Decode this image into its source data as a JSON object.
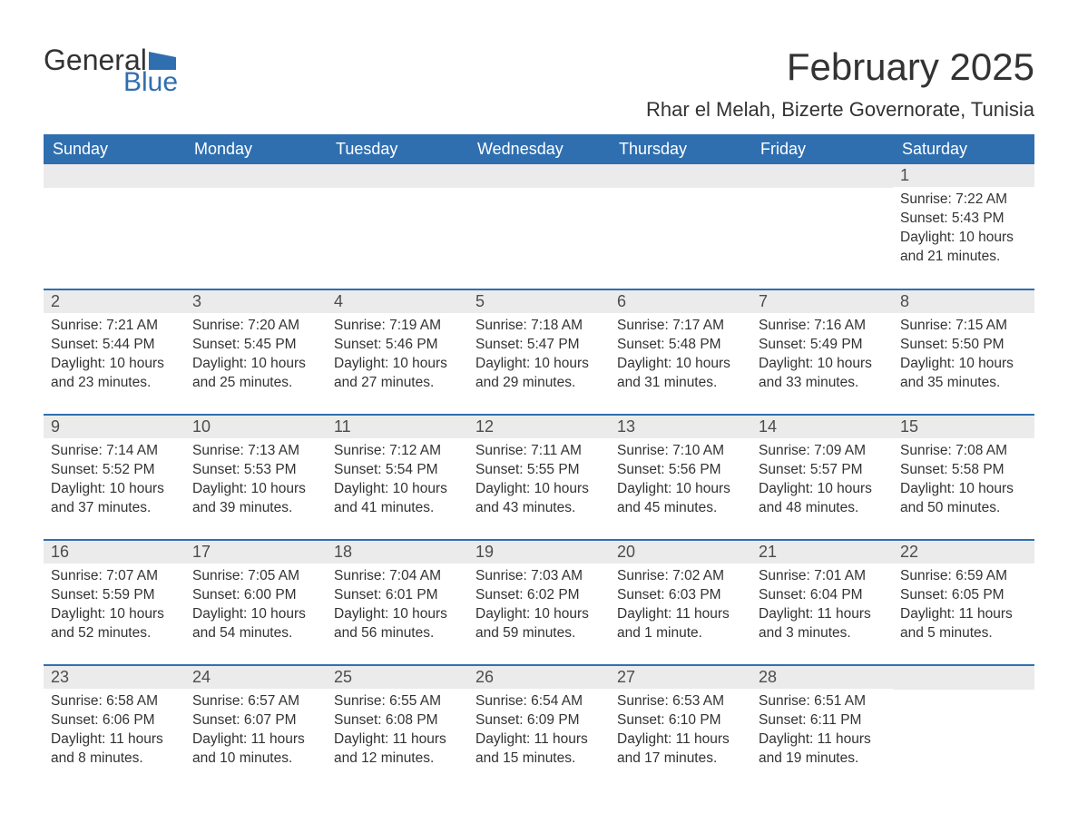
{
  "logo": {
    "text_primary": "General",
    "text_secondary": "Blue",
    "flag_color": "#2f6fb0"
  },
  "title": "February 2025",
  "location": "Rhar el Melah, Bizerte Governorate, Tunisia",
  "colors": {
    "header_bg": "#2f6fb0",
    "header_text": "#ffffff",
    "daynum_bg": "#ebebeb",
    "body_text": "#333333",
    "row_border": "#2f6fb0"
  },
  "typography": {
    "title_fontsize": 42,
    "location_fontsize": 22,
    "weekday_fontsize": 18,
    "daynum_fontsize": 18,
    "body_fontsize": 15.5,
    "font_family": "Segoe UI"
  },
  "weekdays": [
    "Sunday",
    "Monday",
    "Tuesday",
    "Wednesday",
    "Thursday",
    "Friday",
    "Saturday"
  ],
  "weeks": [
    [
      {
        "day": "",
        "sunrise": "",
        "sunset": "",
        "daylight": ""
      },
      {
        "day": "",
        "sunrise": "",
        "sunset": "",
        "daylight": ""
      },
      {
        "day": "",
        "sunrise": "",
        "sunset": "",
        "daylight": ""
      },
      {
        "day": "",
        "sunrise": "",
        "sunset": "",
        "daylight": ""
      },
      {
        "day": "",
        "sunrise": "",
        "sunset": "",
        "daylight": ""
      },
      {
        "day": "",
        "sunrise": "",
        "sunset": "",
        "daylight": ""
      },
      {
        "day": "1",
        "sunrise": "Sunrise: 7:22 AM",
        "sunset": "Sunset: 5:43 PM",
        "daylight": "Daylight: 10 hours and 21 minutes."
      }
    ],
    [
      {
        "day": "2",
        "sunrise": "Sunrise: 7:21 AM",
        "sunset": "Sunset: 5:44 PM",
        "daylight": "Daylight: 10 hours and 23 minutes."
      },
      {
        "day": "3",
        "sunrise": "Sunrise: 7:20 AM",
        "sunset": "Sunset: 5:45 PM",
        "daylight": "Daylight: 10 hours and 25 minutes."
      },
      {
        "day": "4",
        "sunrise": "Sunrise: 7:19 AM",
        "sunset": "Sunset: 5:46 PM",
        "daylight": "Daylight: 10 hours and 27 minutes."
      },
      {
        "day": "5",
        "sunrise": "Sunrise: 7:18 AM",
        "sunset": "Sunset: 5:47 PM",
        "daylight": "Daylight: 10 hours and 29 minutes."
      },
      {
        "day": "6",
        "sunrise": "Sunrise: 7:17 AM",
        "sunset": "Sunset: 5:48 PM",
        "daylight": "Daylight: 10 hours and 31 minutes."
      },
      {
        "day": "7",
        "sunrise": "Sunrise: 7:16 AM",
        "sunset": "Sunset: 5:49 PM",
        "daylight": "Daylight: 10 hours and 33 minutes."
      },
      {
        "day": "8",
        "sunrise": "Sunrise: 7:15 AM",
        "sunset": "Sunset: 5:50 PM",
        "daylight": "Daylight: 10 hours and 35 minutes."
      }
    ],
    [
      {
        "day": "9",
        "sunrise": "Sunrise: 7:14 AM",
        "sunset": "Sunset: 5:52 PM",
        "daylight": "Daylight: 10 hours and 37 minutes."
      },
      {
        "day": "10",
        "sunrise": "Sunrise: 7:13 AM",
        "sunset": "Sunset: 5:53 PM",
        "daylight": "Daylight: 10 hours and 39 minutes."
      },
      {
        "day": "11",
        "sunrise": "Sunrise: 7:12 AM",
        "sunset": "Sunset: 5:54 PM",
        "daylight": "Daylight: 10 hours and 41 minutes."
      },
      {
        "day": "12",
        "sunrise": "Sunrise: 7:11 AM",
        "sunset": "Sunset: 5:55 PM",
        "daylight": "Daylight: 10 hours and 43 minutes."
      },
      {
        "day": "13",
        "sunrise": "Sunrise: 7:10 AM",
        "sunset": "Sunset: 5:56 PM",
        "daylight": "Daylight: 10 hours and 45 minutes."
      },
      {
        "day": "14",
        "sunrise": "Sunrise: 7:09 AM",
        "sunset": "Sunset: 5:57 PM",
        "daylight": "Daylight: 10 hours and 48 minutes."
      },
      {
        "day": "15",
        "sunrise": "Sunrise: 7:08 AM",
        "sunset": "Sunset: 5:58 PM",
        "daylight": "Daylight: 10 hours and 50 minutes."
      }
    ],
    [
      {
        "day": "16",
        "sunrise": "Sunrise: 7:07 AM",
        "sunset": "Sunset: 5:59 PM",
        "daylight": "Daylight: 10 hours and 52 minutes."
      },
      {
        "day": "17",
        "sunrise": "Sunrise: 7:05 AM",
        "sunset": "Sunset: 6:00 PM",
        "daylight": "Daylight: 10 hours and 54 minutes."
      },
      {
        "day": "18",
        "sunrise": "Sunrise: 7:04 AM",
        "sunset": "Sunset: 6:01 PM",
        "daylight": "Daylight: 10 hours and 56 minutes."
      },
      {
        "day": "19",
        "sunrise": "Sunrise: 7:03 AM",
        "sunset": "Sunset: 6:02 PM",
        "daylight": "Daylight: 10 hours and 59 minutes."
      },
      {
        "day": "20",
        "sunrise": "Sunrise: 7:02 AM",
        "sunset": "Sunset: 6:03 PM",
        "daylight": "Daylight: 11 hours and 1 minute."
      },
      {
        "day": "21",
        "sunrise": "Sunrise: 7:01 AM",
        "sunset": "Sunset: 6:04 PM",
        "daylight": "Daylight: 11 hours and 3 minutes."
      },
      {
        "day": "22",
        "sunrise": "Sunrise: 6:59 AM",
        "sunset": "Sunset: 6:05 PM",
        "daylight": "Daylight: 11 hours and 5 minutes."
      }
    ],
    [
      {
        "day": "23",
        "sunrise": "Sunrise: 6:58 AM",
        "sunset": "Sunset: 6:06 PM",
        "daylight": "Daylight: 11 hours and 8 minutes."
      },
      {
        "day": "24",
        "sunrise": "Sunrise: 6:57 AM",
        "sunset": "Sunset: 6:07 PM",
        "daylight": "Daylight: 11 hours and 10 minutes."
      },
      {
        "day": "25",
        "sunrise": "Sunrise: 6:55 AM",
        "sunset": "Sunset: 6:08 PM",
        "daylight": "Daylight: 11 hours and 12 minutes."
      },
      {
        "day": "26",
        "sunrise": "Sunrise: 6:54 AM",
        "sunset": "Sunset: 6:09 PM",
        "daylight": "Daylight: 11 hours and 15 minutes."
      },
      {
        "day": "27",
        "sunrise": "Sunrise: 6:53 AM",
        "sunset": "Sunset: 6:10 PM",
        "daylight": "Daylight: 11 hours and 17 minutes."
      },
      {
        "day": "28",
        "sunrise": "Sunrise: 6:51 AM",
        "sunset": "Sunset: 6:11 PM",
        "daylight": "Daylight: 11 hours and 19 minutes."
      },
      {
        "day": "",
        "sunrise": "",
        "sunset": "",
        "daylight": ""
      }
    ]
  ]
}
